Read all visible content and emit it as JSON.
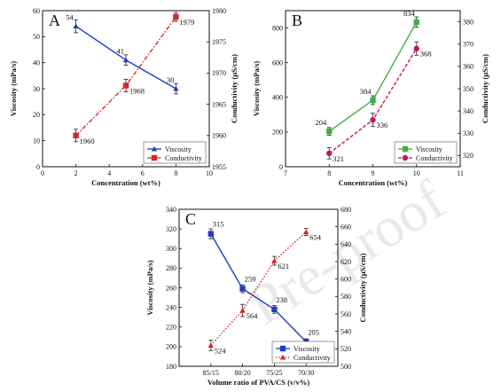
{
  "watermark": "Pre-proof",
  "chart_data": [
    {
      "type": "line",
      "panel": "A",
      "xlabel": "Concentration (wt%)",
      "ylabel": "Viscosity (mPa/s)",
      "y2label": "Conductivity (µS/cm)",
      "x": [
        2,
        5,
        8
      ],
      "xlim": [
        0,
        10
      ],
      "xticks": [
        0,
        2,
        4,
        6,
        8,
        10
      ],
      "ylim": [
        0,
        60
      ],
      "yticks": [
        0,
        10,
        20,
        30,
        40,
        50,
        60
      ],
      "y2lim": [
        1955,
        1980
      ],
      "y2ticks": [
        1955,
        1960,
        1965,
        1970,
        1975,
        1980
      ],
      "legend_position": "bottom-right",
      "series": [
        {
          "name": "Viscosity",
          "axis": "left",
          "color": "#1f3fbf",
          "marker": "triangle",
          "dash": "solid",
          "values": [
            54,
            41,
            30
          ],
          "labels": [
            "54",
            "41",
            "30"
          ],
          "errors": [
            2.5,
            2,
            2
          ]
        },
        {
          "name": "Conductivity",
          "axis": "right",
          "color": "#d62728",
          "marker": "square",
          "dash": "dashdot",
          "values": [
            1960,
            1968,
            1979
          ],
          "labels": [
            "1960",
            "1968",
            "1979"
          ],
          "errors": [
            1,
            1,
            0.7
          ]
        }
      ]
    },
    {
      "type": "line",
      "panel": "B",
      "xlabel": "Concentration (wt%)",
      "ylabel": "Viscosity (mPa/s)",
      "y2label": "Conductivity (µS/cm)",
      "x": [
        8,
        9,
        10
      ],
      "xlim": [
        7,
        11
      ],
      "xticks": [
        7,
        8,
        9,
        10,
        11
      ],
      "ylim": [
        0,
        900
      ],
      "yticks": [
        0,
        200,
        400,
        600,
        800
      ],
      "y2lim": [
        315,
        385
      ],
      "y2ticks": [
        320,
        330,
        340,
        350,
        360,
        370,
        380
      ],
      "legend_position": "bottom-right",
      "series": [
        {
          "name": "Viscosity",
          "axis": "left",
          "color": "#3cb043",
          "marker": "square",
          "dash": "solid",
          "values": [
            204,
            384,
            834
          ],
          "labels": [
            "204",
            "384",
            "834"
          ],
          "errors": [
            22,
            25,
            30
          ]
        },
        {
          "name": "Conductivity",
          "axis": "right",
          "color": "#c2185b",
          "marker": "circle",
          "dash": "dashed",
          "values": [
            321,
            336,
            368
          ],
          "labels": [
            "321",
            "336",
            "368"
          ],
          "errors": [
            2.5,
            3,
            3
          ]
        }
      ]
    },
    {
      "type": "line",
      "panel": "C",
      "xlabel": "Volume ratio of PVA/CS (v/v%)",
      "ylabel": "Viscosity (mPa/s)",
      "y2label": "Conductivity (µS/cm)",
      "categories": [
        "85/15",
        "80/20",
        "75/25",
        "70/30"
      ],
      "ylim": [
        180,
        340
      ],
      "yticks": [
        180,
        200,
        220,
        240,
        260,
        280,
        300,
        320,
        340
      ],
      "y2lim": [
        500,
        680
      ],
      "y2ticks": [
        500,
        520,
        540,
        560,
        580,
        600,
        620,
        640,
        660,
        680
      ],
      "legend_position": "bottom-right",
      "series": [
        {
          "name": "Viscosity",
          "axis": "left",
          "color": "#1f3fbf",
          "marker": "square",
          "dash": "solid",
          "values": [
            315,
            259,
            238,
            205
          ],
          "labels": [
            "315",
            "259",
            "238",
            "205"
          ],
          "errors": [
            5,
            4,
            4,
            3
          ]
        },
        {
          "name": "Conductivity",
          "axis": "right",
          "color": "#d62728",
          "marker": "triangle",
          "dash": "dotted",
          "values": [
            524,
            564,
            621,
            654
          ],
          "labels": [
            "524",
            "564",
            "621",
            "654"
          ],
          "errors": [
            6,
            7,
            5,
            4
          ]
        }
      ]
    }
  ]
}
